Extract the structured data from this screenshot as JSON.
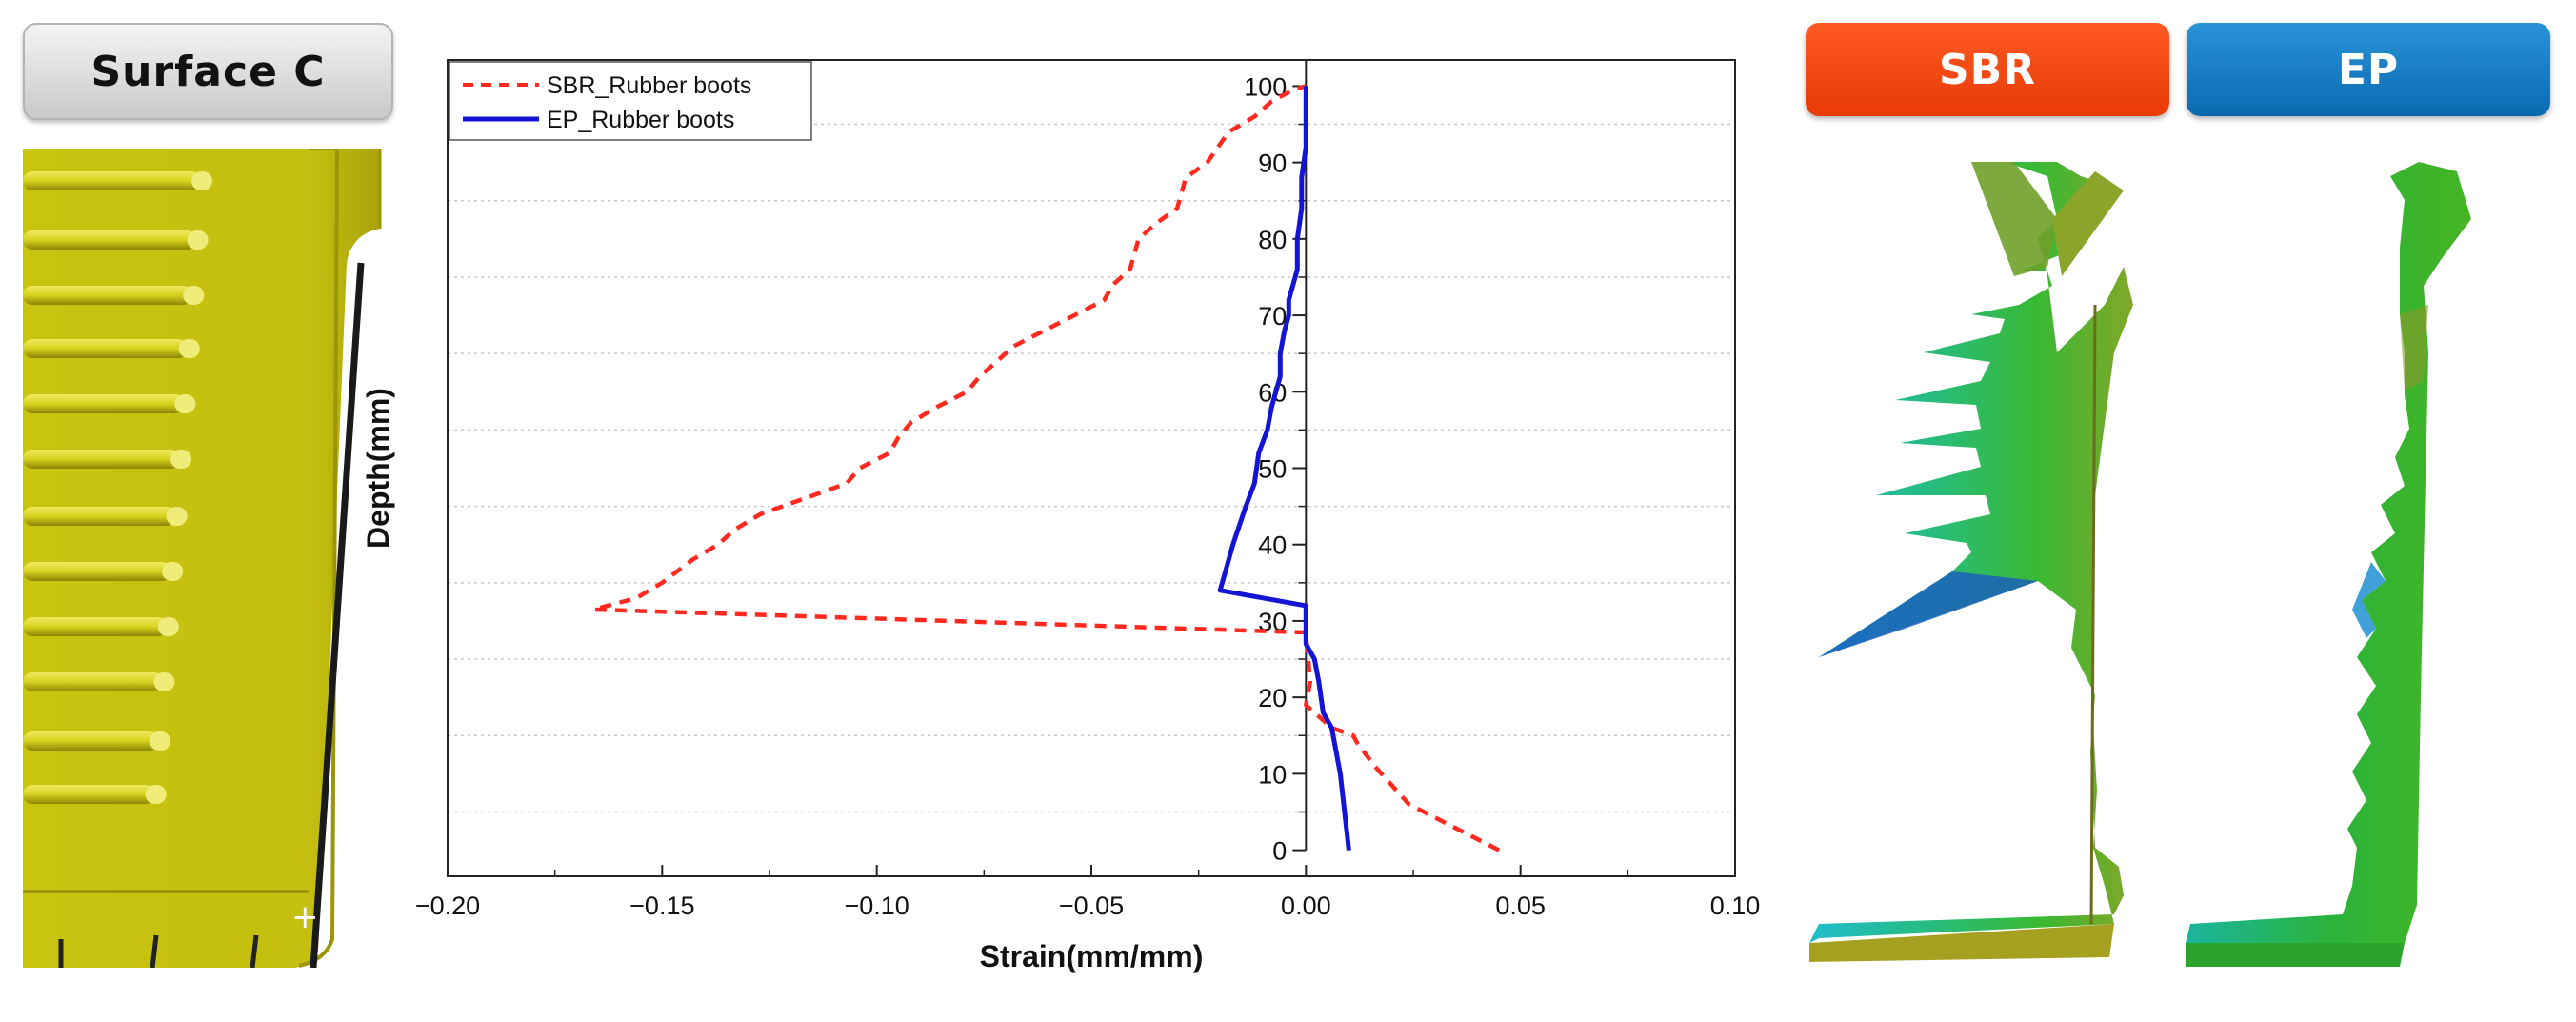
{
  "buttons": {
    "surface": "Surface  C",
    "sbr": "SBR",
    "ep": "EP"
  },
  "colors": {
    "sbr": "#ff2a1f",
    "ep": "#1414d4",
    "grid": "#c8c8c8",
    "surface_yellow": "#c9c410"
  },
  "chart_data": {
    "type": "line",
    "xlabel": "Strain(mm/mm)",
    "ylabel": "Depth(mm)",
    "xlim": [
      -0.2,
      0.1
    ],
    "ylim": [
      0,
      100
    ],
    "xticks": [
      -0.2,
      -0.15,
      -0.1,
      -0.05,
      0.0,
      0.05,
      0.1
    ],
    "xtick_labels": [
      "−0.20",
      "−0.15",
      "−0.10",
      "−0.05",
      "0.00",
      "0.05",
      "0.10"
    ],
    "yticks": [
      0,
      10,
      20,
      30,
      40,
      50,
      60,
      70,
      80,
      90,
      100
    ],
    "ytick_labels": [
      "0",
      "10",
      "20",
      "30",
      "40",
      "50",
      "60",
      "70",
      "80",
      "90",
      "100"
    ],
    "grid": "horizontal dotted",
    "legend_position": "top-left",
    "series": [
      {
        "name": "SBR_Rubber boots",
        "style": "dashed",
        "x": [
          0.045,
          0.024,
          0.016,
          0.012,
          0.011,
          0.006,
          0.0,
          0.001,
          0.0,
          -0.166,
          -0.156,
          -0.15,
          -0.143,
          -0.137,
          -0.133,
          -0.127,
          -0.117,
          -0.107,
          -0.104,
          -0.097,
          -0.095,
          -0.092,
          -0.086,
          -0.079,
          -0.076,
          -0.072,
          -0.068,
          -0.061,
          -0.054,
          -0.047,
          -0.045,
          -0.041,
          -0.04,
          -0.039,
          -0.035,
          -0.03,
          -0.028,
          -0.023,
          -0.018,
          -0.012,
          -0.008,
          -0.003,
          0.0
        ],
        "y": [
          0,
          6,
          11,
          14,
          15,
          16,
          19,
          22,
          28.5,
          31.5,
          33,
          35,
          38,
          40,
          42,
          44,
          46,
          48,
          50,
          52,
          54,
          56,
          58,
          60,
          62,
          64,
          66,
          68,
          70,
          72,
          74,
          76,
          78,
          80,
          82,
          84,
          88,
          90,
          94,
          96,
          98,
          99.5,
          100
        ]
      },
      {
        "name": "EP_Rubber boots",
        "style": "solid",
        "x": [
          0.01,
          0.008,
          0.006,
          0.004,
          0.003,
          0.002,
          0.0,
          0.0,
          -0.02,
          -0.017,
          -0.014,
          -0.012,
          -0.011,
          -0.009,
          -0.008,
          -0.006,
          -0.006,
          -0.005,
          -0.004,
          -0.004,
          -0.003,
          -0.002,
          -0.002,
          -0.001,
          -0.001,
          0.0,
          0.0
        ],
        "y": [
          0,
          10,
          16,
          18,
          22,
          25,
          27,
          32,
          34,
          40,
          45,
          48,
          52,
          55,
          58,
          62,
          65,
          68,
          70,
          72,
          74,
          76,
          80,
          84,
          88,
          92,
          100
        ]
      }
    ]
  }
}
